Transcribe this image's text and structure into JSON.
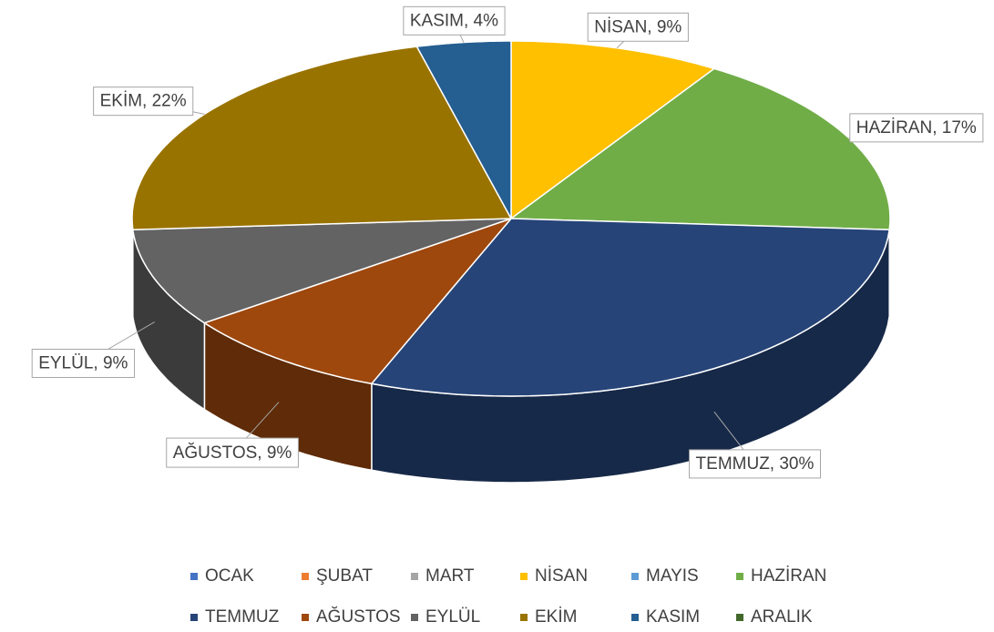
{
  "chart_data": {
    "type": "pie",
    "categories": [
      "OCAK",
      "ŞUBAT",
      "MART",
      "NİSAN",
      "MAYIS",
      "HAZİRAN",
      "TEMMUZ",
      "AĞUSTOS",
      "EYLÜL",
      "EKİM",
      "KASIM",
      "ARALIK"
    ],
    "values": [
      0,
      0,
      0,
      9,
      0,
      17,
      30,
      9,
      9,
      22,
      4,
      0
    ],
    "value_labels": [
      null,
      null,
      null,
      "NİSAN, 9%",
      null,
      "HAZİRAN, 17%",
      "TEMMUZ, 30%",
      "AĞUSTOS, 9%",
      "EYLÜL, 9%",
      "EKİM, 22%",
      "KASIM, 4%",
      null
    ],
    "colors": [
      "#4472c4",
      "#ed7d31",
      "#a5a5a5",
      "#ffc000",
      "#5b9bd5",
      "#70ad47",
      "#264478",
      "#9e480e",
      "#636363",
      "#997300",
      "#255e91",
      "#43682b"
    ],
    "legend": "bottom"
  }
}
